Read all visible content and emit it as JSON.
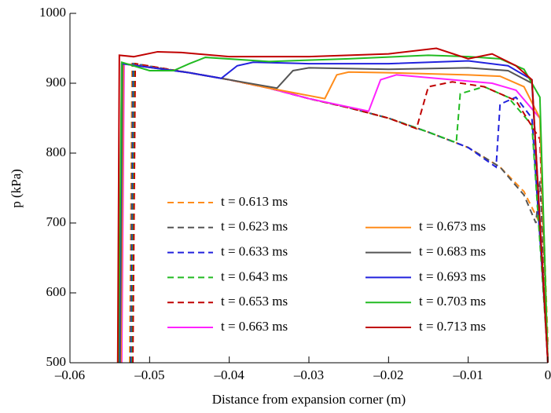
{
  "chart_data": {
    "type": "line",
    "xlabel": "Distance from expansion corner (m)",
    "ylabel": "p (kPa)",
    "xlim": [
      -0.06,
      0
    ],
    "ylim": [
      500,
      1000
    ],
    "xticks": [
      {
        "value": -0.06,
        "label": "–0.06"
      },
      {
        "value": -0.05,
        "label": "–0.05"
      },
      {
        "value": -0.04,
        "label": "–0.04"
      },
      {
        "value": -0.03,
        "label": "–0.03"
      },
      {
        "value": -0.02,
        "label": "–0.02"
      },
      {
        "value": -0.01,
        "label": "–0.01"
      },
      0
    ],
    "yticks": [
      500,
      600,
      700,
      800,
      900,
      1000
    ],
    "series": [
      {
        "name": "t = 0.613 ms",
        "color": "#ff8c1a",
        "style": "dashed",
        "x": [
          -0.0525,
          -0.0522,
          -0.045,
          -0.04,
          -0.035,
          -0.03,
          -0.025,
          -0.02,
          -0.015,
          -0.01,
          -0.006,
          -0.003,
          -0.0005,
          0
        ],
        "values": [
          500,
          928,
          915,
          905,
          893,
          878,
          865,
          850,
          830,
          808,
          780,
          745,
          688,
          530
        ]
      },
      {
        "name": "t = 0.623 ms",
        "color": "#555555",
        "style": "dashed",
        "x": [
          -0.0524,
          -0.0521,
          -0.045,
          -0.04,
          -0.035,
          -0.03,
          -0.025,
          -0.02,
          -0.015,
          -0.01,
          -0.006,
          -0.003,
          -0.0015,
          -0.001,
          0
        ],
        "values": [
          500,
          928,
          915,
          905,
          893,
          878,
          865,
          850,
          830,
          808,
          780,
          740,
          700,
          760,
          520
        ]
      },
      {
        "name": "t = 0.633 ms",
        "color": "#2222dd",
        "style": "dashed",
        "x": [
          -0.0523,
          -0.052,
          -0.045,
          -0.04,
          -0.035,
          -0.03,
          -0.025,
          -0.02,
          -0.015,
          -0.01,
          -0.0065,
          -0.006,
          -0.004,
          -0.002,
          0
        ],
        "values": [
          500,
          928,
          915,
          905,
          893,
          878,
          865,
          850,
          830,
          808,
          780,
          870,
          880,
          850,
          510
        ]
      },
      {
        "name": "t = 0.643 ms",
        "color": "#22bb22",
        "style": "dashed",
        "x": [
          -0.0522,
          -0.0519,
          -0.045,
          -0.04,
          -0.035,
          -0.03,
          -0.025,
          -0.02,
          -0.015,
          -0.0115,
          -0.011,
          -0.008,
          -0.005,
          -0.002,
          0
        ],
        "values": [
          500,
          928,
          915,
          905,
          893,
          878,
          865,
          850,
          830,
          815,
          885,
          895,
          880,
          840,
          505
        ]
      },
      {
        "name": "t = 0.653 ms",
        "color": "#c00000",
        "style": "dashed",
        "x": [
          -0.0521,
          -0.0518,
          -0.045,
          -0.04,
          -0.035,
          -0.03,
          -0.025,
          -0.02,
          -0.0165,
          -0.015,
          -0.012,
          -0.008,
          -0.004,
          -0.001,
          0
        ],
        "values": [
          500,
          928,
          915,
          905,
          893,
          878,
          865,
          850,
          835,
          895,
          902,
          895,
          875,
          820,
          500
        ]
      },
      {
        "name": "t = 0.663 ms",
        "color": "#ff22ff",
        "style": "solid",
        "x": [
          -0.0535,
          -0.0532,
          -0.045,
          -0.04,
          -0.035,
          -0.03,
          -0.0225,
          -0.021,
          -0.019,
          -0.015,
          -0.01,
          -0.007,
          -0.004,
          -0.001,
          0
        ],
        "values": [
          500,
          928,
          915,
          905,
          893,
          878,
          860,
          905,
          912,
          908,
          903,
          900,
          890,
          850,
          500
        ]
      },
      {
        "name": "t = 0.673 ms",
        "color": "#ff8c1a",
        "style": "solid",
        "x": [
          -0.0536,
          -0.0533,
          -0.045,
          -0.04,
          -0.035,
          -0.028,
          -0.0265,
          -0.025,
          -0.02,
          -0.01,
          -0.006,
          -0.003,
          -0.001,
          0
        ],
        "values": [
          500,
          928,
          915,
          905,
          893,
          878,
          912,
          916,
          915,
          912,
          910,
          895,
          850,
          500
        ]
      },
      {
        "name": "t = 0.683 ms",
        "color": "#555555",
        "style": "solid",
        "x": [
          -0.0537,
          -0.0534,
          -0.045,
          -0.04,
          -0.034,
          -0.032,
          -0.03,
          -0.02,
          -0.01,
          -0.005,
          -0.002,
          0
        ],
        "values": [
          500,
          928,
          915,
          905,
          893,
          918,
          922,
          920,
          922,
          918,
          900,
          500
        ]
      },
      {
        "name": "t = 0.693 ms",
        "color": "#2222dd",
        "style": "solid",
        "x": [
          -0.0538,
          -0.0535,
          -0.045,
          -0.041,
          -0.039,
          -0.037,
          -0.03,
          -0.02,
          -0.01,
          -0.005,
          -0.002,
          0
        ],
        "values": [
          500,
          928,
          915,
          907,
          925,
          930,
          928,
          928,
          932,
          925,
          905,
          500
        ]
      },
      {
        "name": "t = 0.703 ms",
        "color": "#22bb22",
        "style": "solid",
        "x": [
          -0.0539,
          -0.0535,
          -0.05,
          -0.047,
          -0.045,
          -0.043,
          -0.035,
          -0.025,
          -0.015,
          -0.01,
          -0.006,
          -0.003,
          -0.001,
          0
        ],
        "values": [
          500,
          930,
          918,
          918,
          928,
          937,
          931,
          935,
          940,
          938,
          935,
          920,
          880,
          500
        ]
      },
      {
        "name": "t = 0.713 ms",
        "color": "#c00000",
        "style": "solid",
        "x": [
          -0.054,
          -0.0538,
          -0.052,
          -0.049,
          -0.046,
          -0.04,
          -0.03,
          -0.02,
          -0.014,
          -0.01,
          -0.007,
          -0.004,
          -0.002,
          0
        ],
        "values": [
          500,
          940,
          938,
          945,
          944,
          938,
          938,
          942,
          950,
          935,
          942,
          925,
          905,
          500
        ]
      }
    ]
  }
}
